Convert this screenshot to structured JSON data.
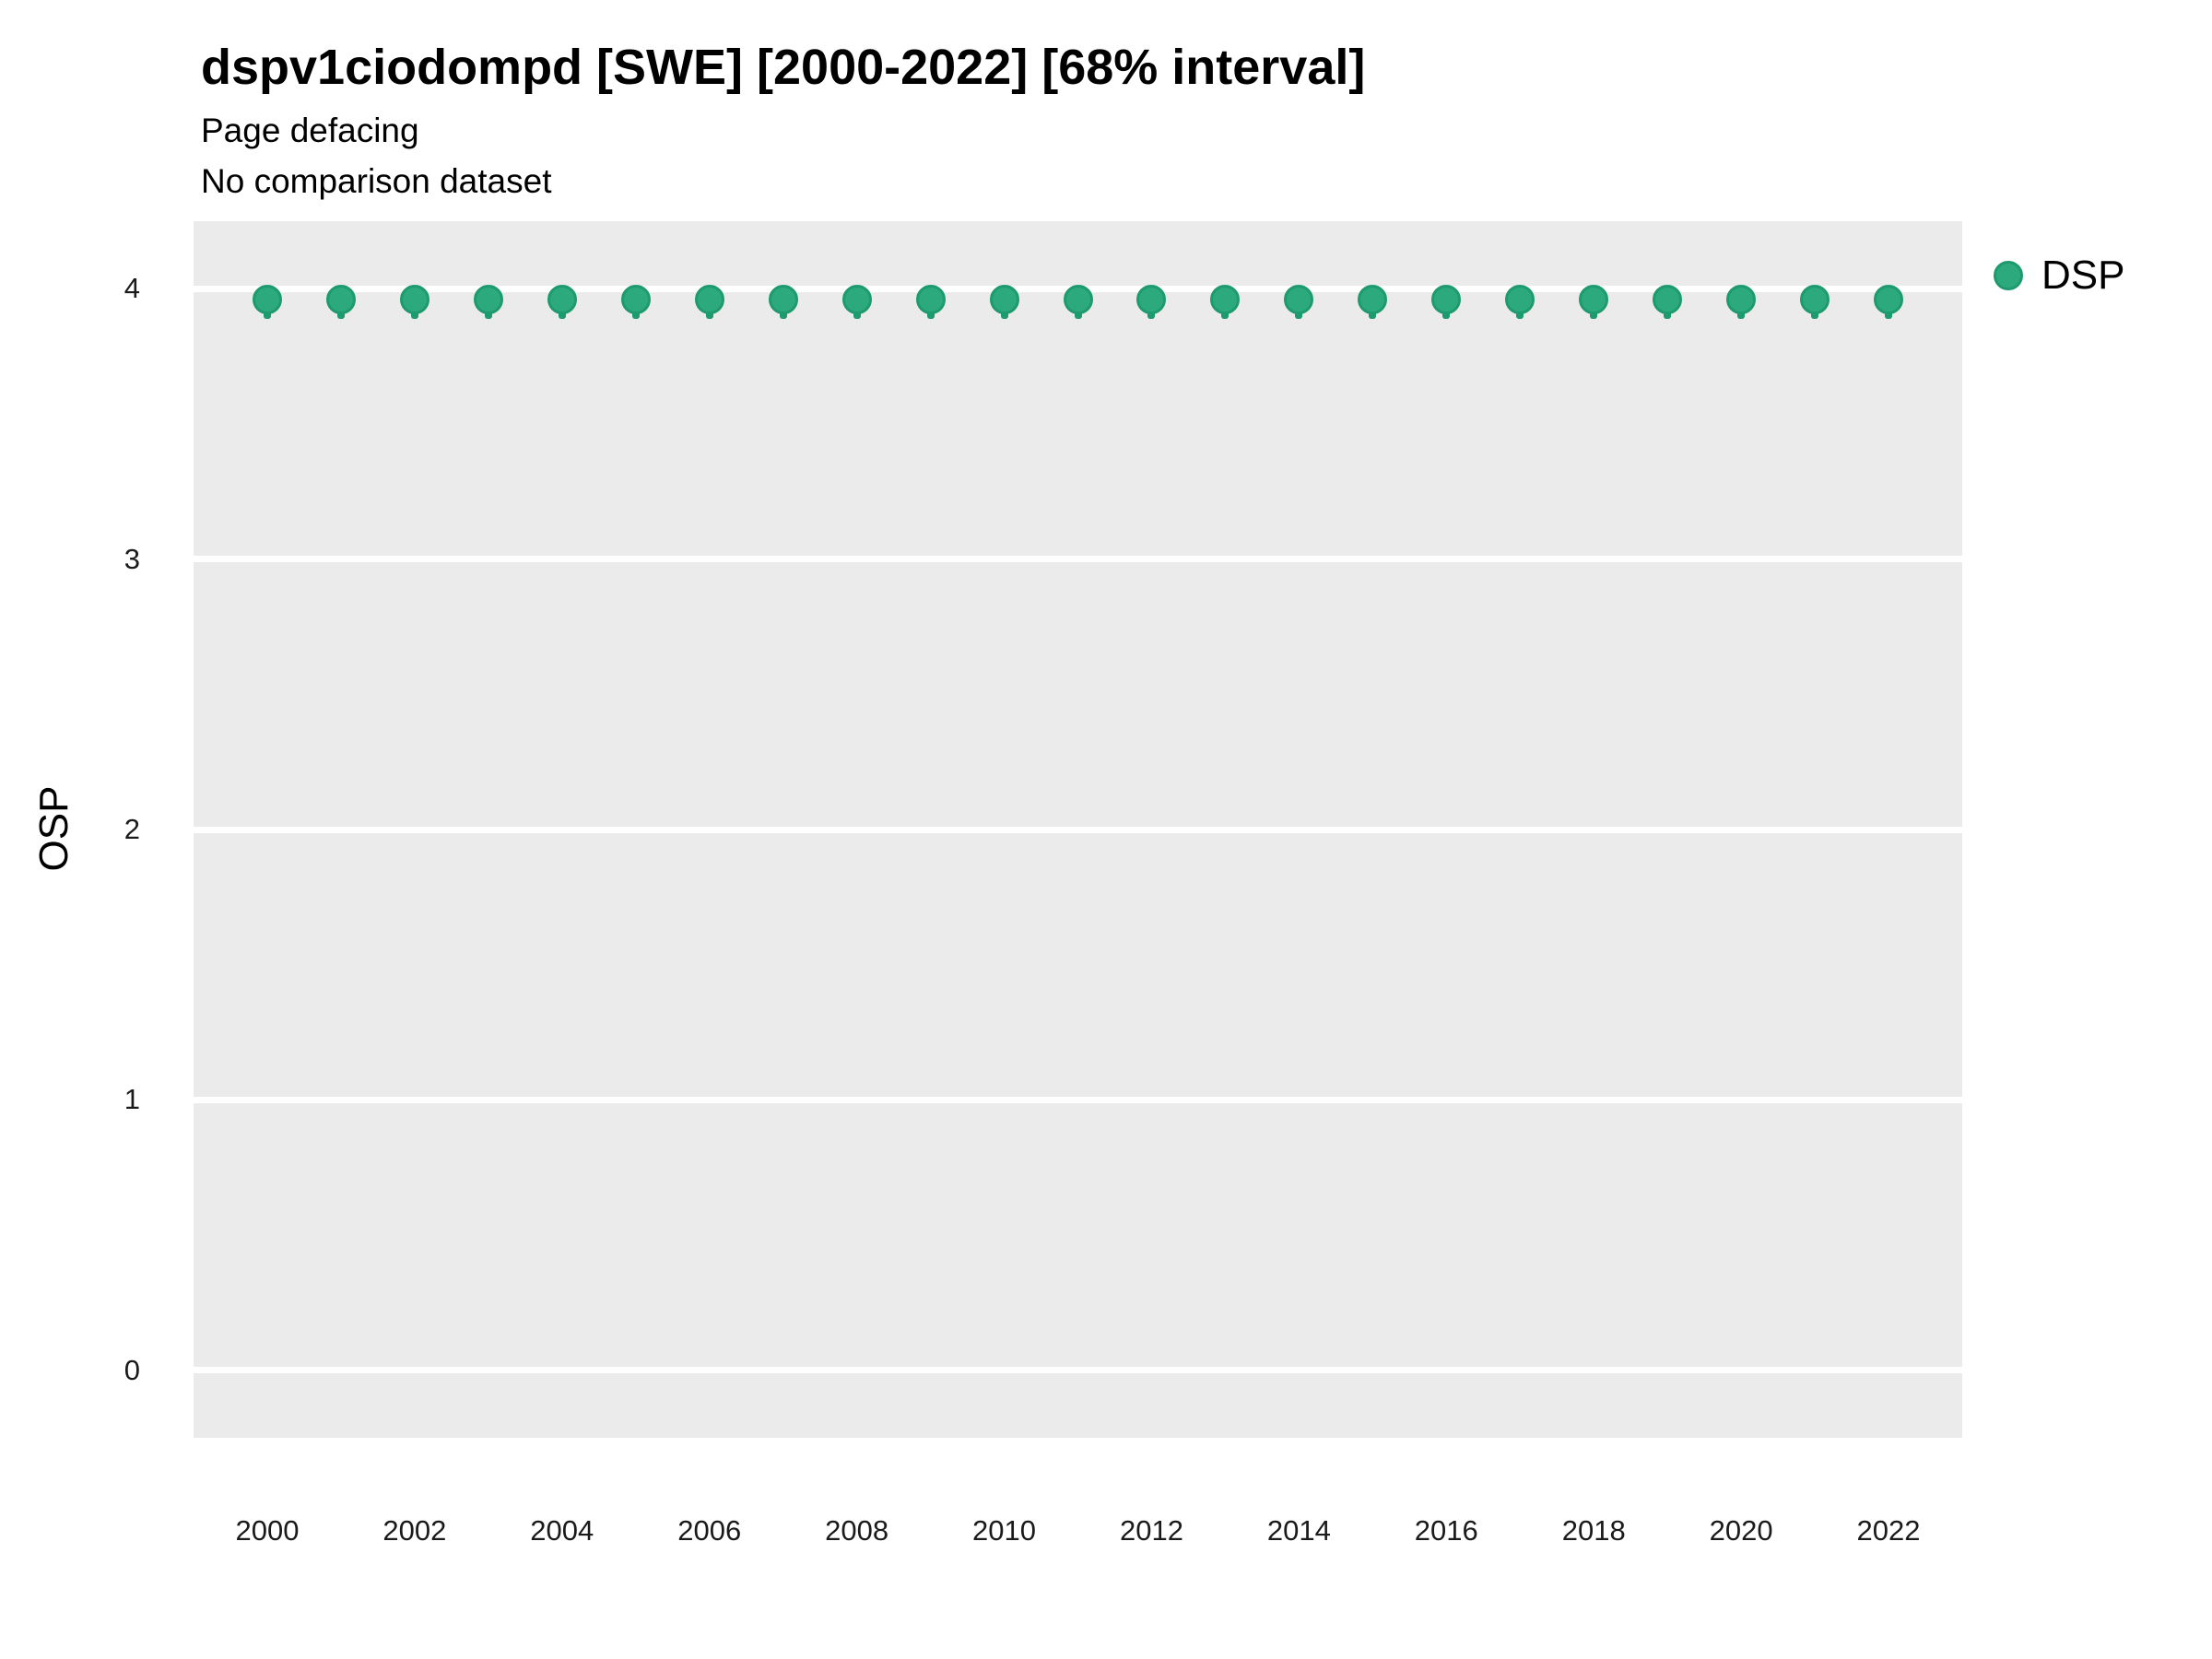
{
  "header": {
    "title": "dspv1ciodompd [SWE] [2000-2022] [68% interval]",
    "subtitle": "Page defacing",
    "note": "No comparison dataset"
  },
  "legend": {
    "items": [
      {
        "label": "DSP",
        "color": "#2DA97E",
        "edge_color": "#1E9B6E"
      }
    ]
  },
  "chart_data": {
    "type": "scatter",
    "title": "dspv1ciodompd [SWE] [2000-2022] [68% interval]",
    "subtitle": "Page defacing",
    "note": "No comparison dataset",
    "xlabel": "",
    "ylabel": "OSP",
    "x": [
      2000,
      2001,
      2002,
      2003,
      2004,
      2005,
      2006,
      2007,
      2008,
      2009,
      2010,
      2011,
      2012,
      2013,
      2014,
      2015,
      2016,
      2017,
      2018,
      2019,
      2020,
      2021,
      2022
    ],
    "series": [
      {
        "name": "DSP",
        "values": [
          3.96,
          3.96,
          3.96,
          3.96,
          3.96,
          3.96,
          3.96,
          3.96,
          3.96,
          3.96,
          3.96,
          3.96,
          3.96,
          3.96,
          3.96,
          3.96,
          3.96,
          3.96,
          3.96,
          3.96,
          3.96,
          3.96,
          3.96
        ],
        "interval_low": [
          3.89,
          3.89,
          3.89,
          3.89,
          3.89,
          3.89,
          3.89,
          3.89,
          3.89,
          3.89,
          3.89,
          3.89,
          3.89,
          3.89,
          3.89,
          3.89,
          3.89,
          3.89,
          3.89,
          3.89,
          3.89,
          3.89,
          3.89
        ],
        "interval_high": [
          3.98,
          3.98,
          3.98,
          3.98,
          3.98,
          3.98,
          3.98,
          3.98,
          3.98,
          3.98,
          3.98,
          3.98,
          3.98,
          3.98,
          3.98,
          3.98,
          3.98,
          3.98,
          3.98,
          3.98,
          3.98,
          3.98,
          3.98
        ],
        "color": "#2DA97E",
        "edge_color": "#1E9B6E"
      }
    ],
    "xticks": [
      2000,
      2002,
      2004,
      2006,
      2008,
      2010,
      2012,
      2014,
      2016,
      2018,
      2020,
      2022
    ],
    "yticks": [
      0,
      1,
      2,
      3,
      4
    ],
    "xlim": [
      1999,
      2023
    ],
    "ylim": [
      -0.25,
      4.25
    ],
    "grid": {
      "horizontal": true,
      "vertical": false,
      "color": "#FFFFFF"
    },
    "panel_bg": "#EBEBEB",
    "legend_position": "right-top"
  }
}
